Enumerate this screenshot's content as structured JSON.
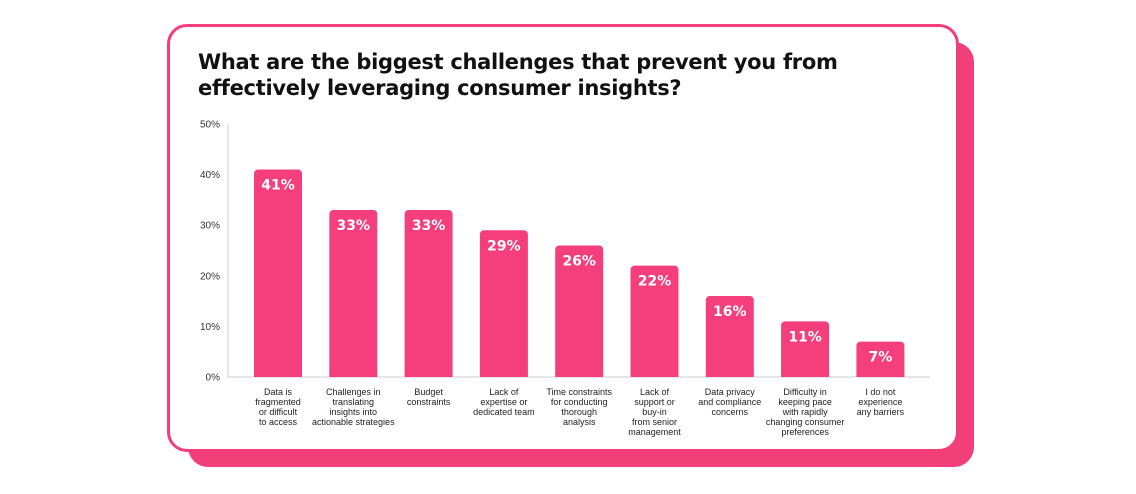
{
  "chart_data": {
    "type": "bar",
    "title": "What are the biggest challenges that prevent you from effectively leveraging consumer insights?",
    "categories": [
      "Data is fragmented or difficult to access",
      "Challenges in translating insights into actionable strategies",
      "Budget constraints",
      "Lack of expertise or dedicated team",
      "Time constraints for conducting thorough analysis",
      "Lack of support or buy-in from senior management",
      "Data privacy and compliance concerns",
      "Difficulty in keeping pace with rapidly changing consumer preferences",
      "I do not experience any barriers"
    ],
    "category_lines": [
      [
        "Data is",
        "fragmented",
        "or difficult",
        "to access"
      ],
      [
        "Challenges in",
        "translating",
        "insights into",
        "actionable strategies"
      ],
      [
        "Budget",
        "constraints"
      ],
      [
        "Lack of",
        "expertise or",
        "dedicated team"
      ],
      [
        "Time constraints",
        "for conducting",
        "thorough",
        "analysis"
      ],
      [
        "Lack of",
        "support or",
        "buy-in",
        "from senior",
        "management"
      ],
      [
        "Data privacy",
        "and compliance",
        "concerns"
      ],
      [
        "Difficulty in",
        "keeping pace",
        "with rapidly",
        "changing consumer",
        "preferences"
      ],
      [
        "I do not",
        "experience",
        "any barriers"
      ]
    ],
    "values": [
      41,
      33,
      33,
      29,
      26,
      22,
      16,
      11,
      7
    ],
    "data_labels": [
      "41%",
      "33%",
      "33%",
      "29%",
      "26%",
      "22%",
      "16%",
      "11%",
      "7%"
    ],
    "yticks": [
      0,
      10,
      20,
      30,
      40,
      50
    ],
    "ytick_labels": [
      "0%",
      "10%",
      "20%",
      "30%",
      "40%",
      "50%"
    ],
    "ylim": [
      0,
      50
    ],
    "xlabel": "",
    "ylabel": "",
    "grid": false,
    "colors": {
      "bar": "#f43f7c",
      "accent": "#f23f7a",
      "text": "#111111"
    }
  }
}
